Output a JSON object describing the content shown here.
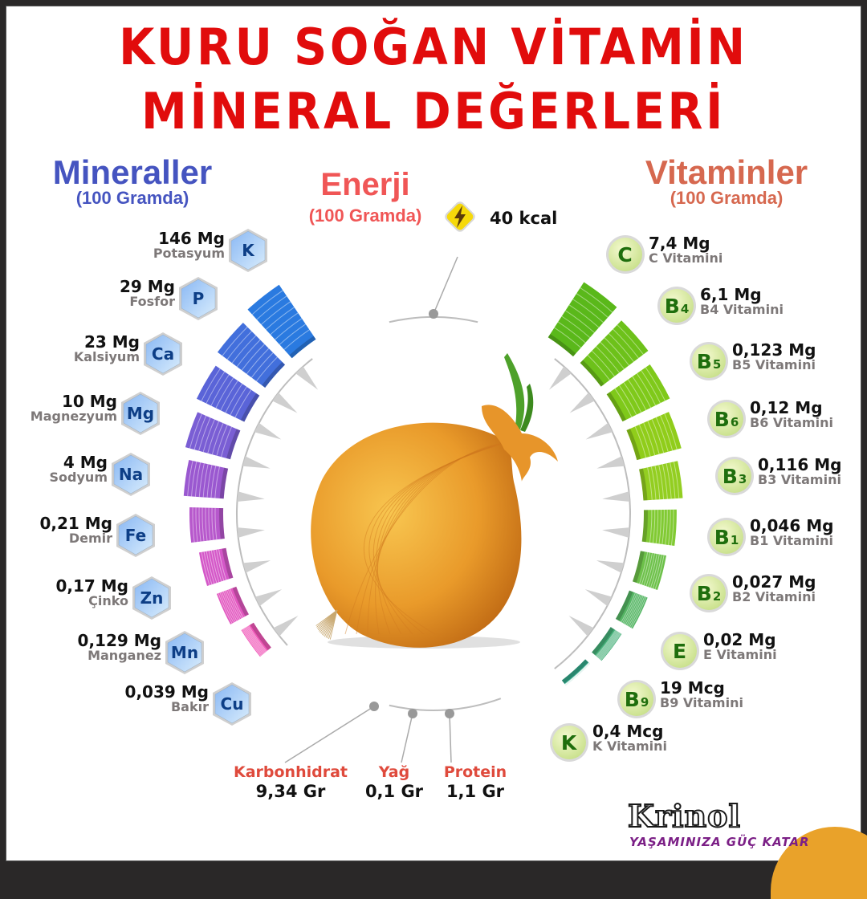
{
  "title": {
    "line1": "KURU SOĞAN VİTAMİN",
    "line2": "MİNERAL DEĞERLERİ"
  },
  "minerals_header": {
    "title": "Mineraller",
    "subtitle": "(100 Gramda)"
  },
  "energy_header": {
    "title": "Enerji",
    "subtitle": "(100 Gramda)",
    "value": "40 kcal",
    "icon": "lightning-bolt-icon"
  },
  "vitamins_header": {
    "title": "Vitaminler",
    "subtitle": "(100 Gramda)"
  },
  "minerals": [
    {
      "symbol": "K",
      "value": "146 Mg",
      "name": "Potasyum"
    },
    {
      "symbol": "P",
      "value": "29 Mg",
      "name": "Fosfor"
    },
    {
      "symbol": "Ca",
      "value": "23 Mg",
      "name": "Kalsiyum"
    },
    {
      "symbol": "Mg",
      "value": "10 Mg",
      "name": "Magnezyum"
    },
    {
      "symbol": "Na",
      "value": "4 Mg",
      "name": "Sodyum"
    },
    {
      "symbol": "Fe",
      "value": "0,21 Mg",
      "name": "Demir"
    },
    {
      "symbol": "Zn",
      "value": "0,17 Mg",
      "name": "Çinko"
    },
    {
      "symbol": "Mn",
      "value": "0,129 Mg",
      "name": "Manganez"
    },
    {
      "symbol": "Cu",
      "value": "0,039 Mg",
      "name": "Bakır"
    }
  ],
  "vitamins": [
    {
      "symbol": "C",
      "sub": "",
      "value": "7,4 Mg",
      "name": "C Vitamini"
    },
    {
      "symbol": "B",
      "sub": "4",
      "value": "6,1 Mg",
      "name": "B4 Vitamini"
    },
    {
      "symbol": "B",
      "sub": "5",
      "value": "0,123 Mg",
      "name": "B5 Vitamini"
    },
    {
      "symbol": "B",
      "sub": "6",
      "value": "0,12 Mg",
      "name": "B6 Vitamini"
    },
    {
      "symbol": "B",
      "sub": "3",
      "value": "0,116 Mg",
      "name": "B3 Vitamini"
    },
    {
      "symbol": "B",
      "sub": "1",
      "value": "0,046 Mg",
      "name": "B1 Vitamini"
    },
    {
      "symbol": "B",
      "sub": "2",
      "value": "0,027 Mg",
      "name": "B2 Vitamini"
    },
    {
      "symbol": "E",
      "sub": "",
      "value": "0,02 Mg",
      "name": "E Vitamini"
    },
    {
      "symbol": "B",
      "sub": "9",
      "value": "19 Mcg",
      "name": "B9 Vitamini"
    },
    {
      "symbol": "K",
      "sub": "",
      "value": "0,4 Mcg",
      "name": "K Vitamini"
    }
  ],
  "macros": [
    {
      "name": "Karbonhidrat",
      "value": "9,34 Gr"
    },
    {
      "name": "Yağ",
      "value": "0,1 Gr"
    },
    {
      "name": "Protein",
      "value": "1,1 Gr"
    }
  ],
  "brand": {
    "name": "Krinol",
    "tagline": "YAŞAMINIZA GÜÇ KATAR"
  },
  "colors": {
    "title": "#e10c0c",
    "minerals_header": "#4554c0",
    "vitamins_header": "#d6684f",
    "energy_header": "#f05656",
    "macro_label": "#df4a3c",
    "mineral_bar_gradient": [
      "#2a7ae0",
      "#5a64d8",
      "#9a58d0",
      "#d458c8",
      "#f058b8"
    ],
    "vitamin_bar_gradient": [
      "#5ab81a",
      "#7cc81a",
      "#9ad01a",
      "#7ac83a",
      "#52b46a",
      "#34a88a"
    ]
  },
  "chart_data": {
    "type": "radial-bar",
    "title": "KURU SOĞAN VİTAMİN MİNERAL DEĞERLERİ",
    "subtitle": "100 Gramda",
    "series": [
      {
        "name": "Mineraller",
        "unit": "mg",
        "categories": [
          "Potasyum",
          "Fosfor",
          "Kalsiyum",
          "Magnezyum",
          "Sodyum",
          "Demir",
          "Çinko",
          "Manganez",
          "Bakır"
        ],
        "labels": [
          "146 Mg",
          "29 Mg",
          "23 Mg",
          "10 Mg",
          "4 Mg",
          "0,21 Mg",
          "0,17 Mg",
          "0,129 Mg",
          "0,039 Mg"
        ],
        "values": [
          146,
          29,
          23,
          10,
          4,
          0.21,
          0.17,
          0.129,
          0.039
        ]
      },
      {
        "name": "Vitaminler",
        "categories": [
          "C Vitamini",
          "B4 Vitamini",
          "B5 Vitamini",
          "B6 Vitamini",
          "B3 Vitamini",
          "B1 Vitamini",
          "B2 Vitamini",
          "E Vitamini",
          "B9 Vitamini",
          "K Vitamini"
        ],
        "labels": [
          "7,4 Mg",
          "6,1 Mg",
          "0,123 Mg",
          "0,12 Mg",
          "0,116 Mg",
          "0,046 Mg",
          "0,027 Mg",
          "0,02 Mg",
          "19 Mcg",
          "0,4 Mcg"
        ],
        "values_mg": [
          7.4,
          6.1,
          0.123,
          0.12,
          0.116,
          0.046,
          0.027,
          0.02,
          0.019,
          0.0004
        ]
      }
    ],
    "energy": {
      "label": "Enerji",
      "value": 40,
      "unit": "kcal"
    },
    "macros": {
      "categories": [
        "Karbonhidrat",
        "Yağ",
        "Protein"
      ],
      "values": [
        9.34,
        0.1,
        1.1
      ],
      "unit": "Gr"
    }
  }
}
